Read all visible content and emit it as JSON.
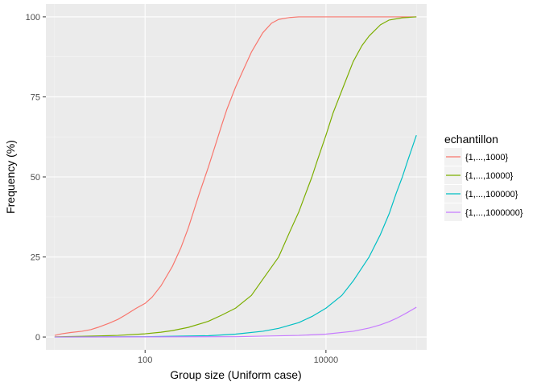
{
  "chart_data": {
    "type": "line",
    "title": "",
    "xlabel": "Group size (Uniform case)",
    "ylabel": "Frequency (%)",
    "x_scale": "log10",
    "xlim": [
      8,
      130000
    ],
    "ylim": [
      -4,
      104
    ],
    "x_ticks": [
      {
        "value": 100,
        "label": "100"
      },
      {
        "value": 10000,
        "label": "10000"
      }
    ],
    "y_ticks": [
      {
        "value": 0,
        "label": "0"
      },
      {
        "value": 25,
        "label": "25"
      },
      {
        "value": 50,
        "label": "50"
      },
      {
        "value": 75,
        "label": "75"
      },
      {
        "value": 100,
        "label": "100"
      }
    ],
    "grid": true,
    "legend": {
      "title": "echantillon",
      "position": "right"
    },
    "series": [
      {
        "name": "{1,...,1000}",
        "color": "#F8766D",
        "points": [
          [
            10,
            0.5
          ],
          [
            12,
            1.0
          ],
          [
            15,
            1.4
          ],
          [
            20,
            1.8
          ],
          [
            25,
            2.3
          ],
          [
            30,
            3.0
          ],
          [
            40,
            4.3
          ],
          [
            50,
            5.5
          ],
          [
            60,
            6.8
          ],
          [
            80,
            9.0
          ],
          [
            100,
            10.5
          ],
          [
            120,
            12.5
          ],
          [
            150,
            16
          ],
          [
            200,
            22
          ],
          [
            250,
            28
          ],
          [
            300,
            34
          ],
          [
            400,
            45
          ],
          [
            500,
            53
          ],
          [
            600,
            60
          ],
          [
            700,
            66
          ],
          [
            800,
            71
          ],
          [
            1000,
            78
          ],
          [
            1200,
            83
          ],
          [
            1500,
            89
          ],
          [
            2000,
            95
          ],
          [
            2500,
            98
          ],
          [
            3000,
            99.2
          ],
          [
            4000,
            99.8
          ],
          [
            5000,
            100
          ],
          [
            10000,
            100
          ],
          [
            20000,
            100
          ],
          [
            50000,
            100
          ],
          [
            100000,
            100
          ]
        ]
      },
      {
        "name": "{1,...,10000}",
        "color": "#7CAE00",
        "points": [
          [
            10,
            0.05
          ],
          [
            20,
            0.2
          ],
          [
            50,
            0.5
          ],
          [
            100,
            1.0
          ],
          [
            150,
            1.5
          ],
          [
            200,
            2.0
          ],
          [
            300,
            3.0
          ],
          [
            500,
            4.9
          ],
          [
            700,
            6.8
          ],
          [
            1000,
            9.0
          ],
          [
            1500,
            13
          ],
          [
            2000,
            18
          ],
          [
            3000,
            25
          ],
          [
            4000,
            33
          ],
          [
            5000,
            39
          ],
          [
            6000,
            45
          ],
          [
            7000,
            50
          ],
          [
            8000,
            55
          ],
          [
            10000,
            63
          ],
          [
            12000,
            70
          ],
          [
            15000,
            77
          ],
          [
            20000,
            86
          ],
          [
            25000,
            91
          ],
          [
            30000,
            94
          ],
          [
            40000,
            97.5
          ],
          [
            50000,
            99
          ],
          [
            70000,
            99.7
          ],
          [
            100000,
            100
          ]
        ]
      },
      {
        "name": "{1,...,100000}",
        "color": "#00BFC4",
        "points": [
          [
            10,
            0.0
          ],
          [
            100,
            0.1
          ],
          [
            500,
            0.4
          ],
          [
            1000,
            0.9
          ],
          [
            2000,
            1.8
          ],
          [
            3000,
            2.7
          ],
          [
            5000,
            4.5
          ],
          [
            7000,
            6.4
          ],
          [
            10000,
            9.0
          ],
          [
            15000,
            13
          ],
          [
            20000,
            17.5
          ],
          [
            30000,
            25
          ],
          [
            40000,
            32
          ],
          [
            50000,
            38.5
          ],
          [
            60000,
            45
          ],
          [
            70000,
            50
          ],
          [
            80000,
            55
          ],
          [
            100000,
            63
          ]
        ]
      },
      {
        "name": "{1,...,1000000}",
        "color": "#C77CFF",
        "points": [
          [
            10,
            0.0
          ],
          [
            1000,
            0.1
          ],
          [
            5000,
            0.5
          ],
          [
            10000,
            0.9
          ],
          [
            20000,
            1.8
          ],
          [
            30000,
            2.8
          ],
          [
            40000,
            3.8
          ],
          [
            50000,
            4.8
          ],
          [
            60000,
            5.8
          ],
          [
            70000,
            6.8
          ],
          [
            80000,
            7.7
          ],
          [
            100000,
            9.3
          ]
        ]
      }
    ]
  }
}
